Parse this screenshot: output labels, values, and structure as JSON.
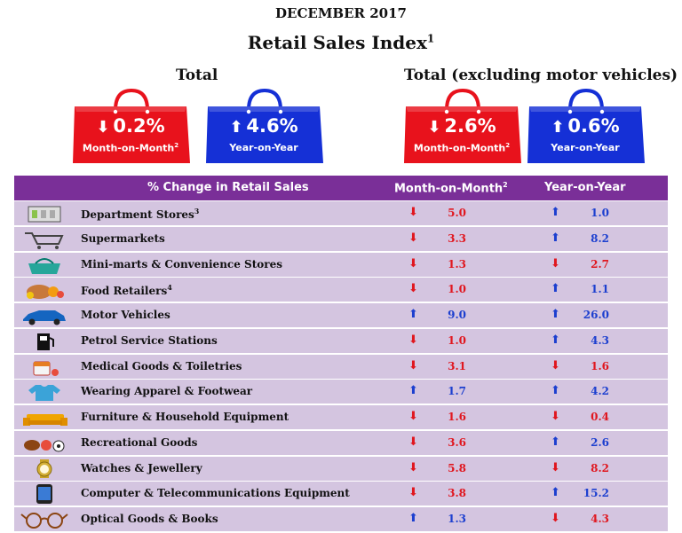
{
  "header": {
    "month": "DECEMBER 2017",
    "title": "Retail Sales Index",
    "title_sup": "1"
  },
  "groups": {
    "total_label": "Total",
    "excl_label": "Total (excluding motor vehicles)"
  },
  "bags": [
    {
      "value": "0.2%",
      "direction": "down",
      "label": "Month-on-Month",
      "sup": "2",
      "color": "#e8121c"
    },
    {
      "value": "4.6%",
      "direction": "up",
      "label": "Year-on-Year",
      "sup": "",
      "color": "#1530d6"
    },
    {
      "value": "2.6%",
      "direction": "down",
      "label": "Month-on-Month",
      "sup": "2",
      "color": "#e8121c"
    },
    {
      "value": "0.6%",
      "direction": "up",
      "label": "Year-on-Year",
      "sup": "",
      "color": "#1530d6"
    }
  ],
  "table": {
    "col_category": "% Change in Retail Sales",
    "col_mom": "Month-on-Month",
    "col_mom_sup": "2",
    "col_yoy": "Year-on-Year"
  },
  "colors": {
    "header_bg": "#7a2f98",
    "row_bg": "#d4c5e0",
    "down": "#e0171f",
    "up": "#1c3fcf"
  },
  "chart_data": {
    "type": "table",
    "title": "Retail Sales Index",
    "columns": [
      "% Change in Retail Sales",
      "Month-on-Month",
      "Year-on-Year"
    ],
    "rows": [
      {
        "category": "Department Stores",
        "sup": "3",
        "icon": "department-store-icon",
        "mom": 5.0,
        "mom_dir": "down",
        "yoy": 1.0,
        "yoy_dir": "up"
      },
      {
        "category": "Supermarkets",
        "sup": "",
        "icon": "shopping-cart-icon",
        "mom": 3.3,
        "mom_dir": "down",
        "yoy": 8.2,
        "yoy_dir": "up"
      },
      {
        "category": "Mini-marts & Convenience Stores",
        "sup": "",
        "icon": "shopping-basket-icon",
        "mom": 1.3,
        "mom_dir": "down",
        "yoy": 2.7,
        "yoy_dir": "down"
      },
      {
        "category": "Food Retailers",
        "sup": "4",
        "icon": "food-icon",
        "mom": 1.0,
        "mom_dir": "down",
        "yoy": 1.1,
        "yoy_dir": "up"
      },
      {
        "category": "Motor Vehicles",
        "sup": "",
        "icon": "car-icon",
        "mom": 9.0,
        "mom_dir": "up",
        "yoy": 26.0,
        "yoy_dir": "up"
      },
      {
        "category": "Petrol Service Stations",
        "sup": "",
        "icon": "fuel-pump-icon",
        "mom": 1.0,
        "mom_dir": "down",
        "yoy": 4.3,
        "yoy_dir": "up"
      },
      {
        "category": "Medical Goods & Toiletries",
        "sup": "",
        "icon": "medicine-icon",
        "mom": 3.1,
        "mom_dir": "down",
        "yoy": 1.6,
        "yoy_dir": "down"
      },
      {
        "category": "Wearing Apparel & Footwear",
        "sup": "",
        "icon": "tshirt-icon",
        "mom": 1.7,
        "mom_dir": "up",
        "yoy": 4.2,
        "yoy_dir": "up"
      },
      {
        "category": "Furniture & Household Equipment",
        "sup": "",
        "icon": "sofa-icon",
        "mom": 1.6,
        "mom_dir": "down",
        "yoy": 0.4,
        "yoy_dir": "down"
      },
      {
        "category": "Recreational Goods",
        "sup": "",
        "icon": "sports-balls-icon",
        "mom": 3.6,
        "mom_dir": "down",
        "yoy": 2.6,
        "yoy_dir": "up"
      },
      {
        "category": "Watches & Jewellery",
        "sup": "",
        "icon": "watch-icon",
        "mom": 5.8,
        "mom_dir": "down",
        "yoy": 8.2,
        "yoy_dir": "down"
      },
      {
        "category": "Computer & Telecommunications Equipment",
        "sup": "",
        "icon": "smartphone-icon",
        "mom": 3.8,
        "mom_dir": "down",
        "yoy": 15.2,
        "yoy_dir": "up"
      },
      {
        "category": "Optical Goods & Books",
        "sup": "",
        "icon": "glasses-icon",
        "mom": 1.3,
        "mom_dir": "up",
        "yoy": 4.3,
        "yoy_dir": "down"
      }
    ]
  }
}
